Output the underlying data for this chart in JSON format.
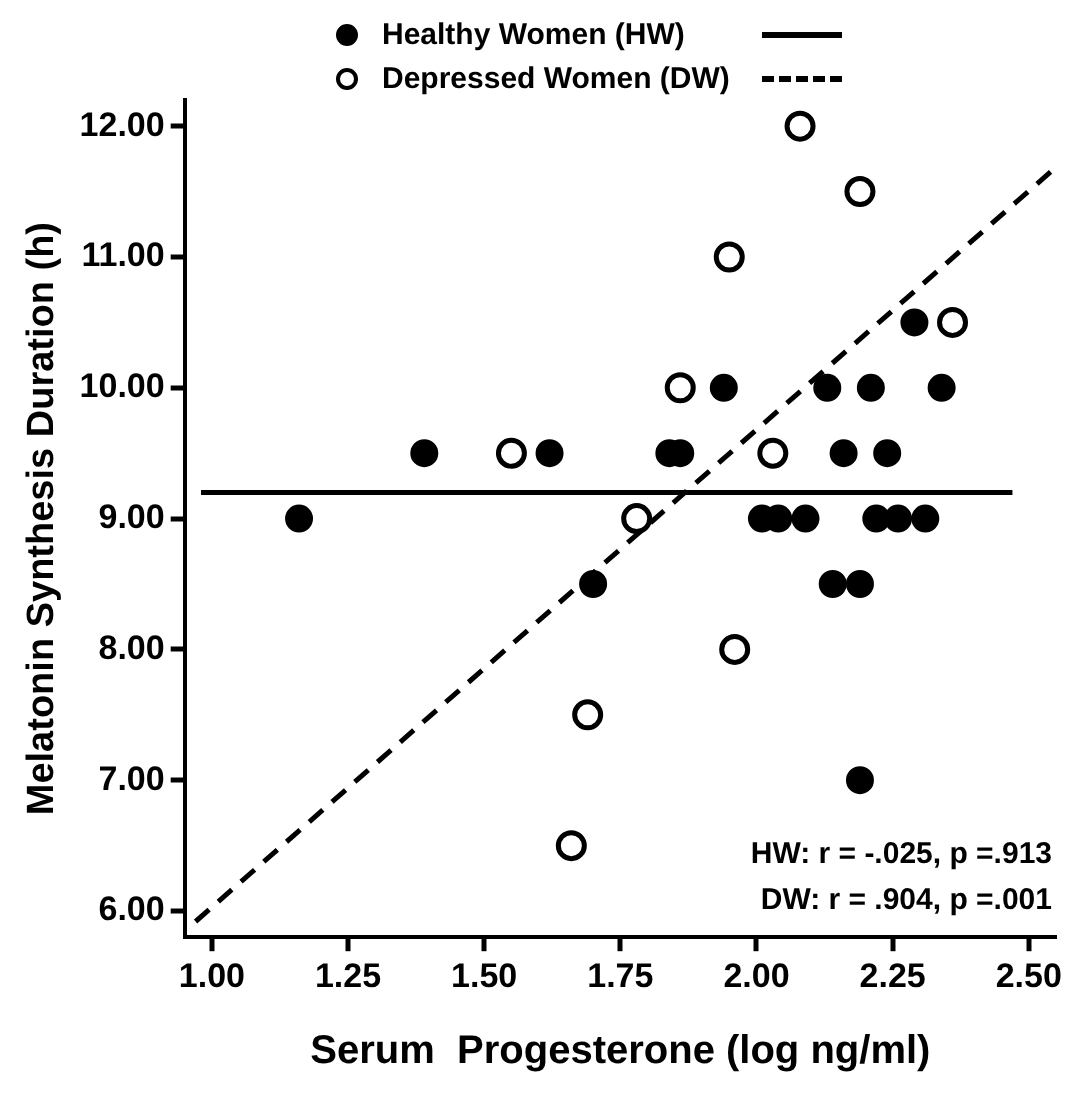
{
  "chart_data": {
    "type": "scatter",
    "xlabel": "Serum  Progesterone (log ng/ml)",
    "ylabel": "Melatonin Synthesis Duration (h)",
    "xlim": [
      0.95,
      2.55
    ],
    "xticks": [
      {
        "value": 1,
        "label": "1.00"
      },
      {
        "value": 1.25,
        "label": "1.25"
      },
      {
        "value": 1.5,
        "label": "1.50"
      },
      {
        "value": 1.75,
        "label": "1.75"
      },
      {
        "value": 2,
        "label": "2.00"
      },
      {
        "value": 2.25,
        "label": "2.25"
      },
      {
        "value": 2.5,
        "label": "2.50"
      }
    ],
    "ylim": [
      5.8,
      12.2
    ],
    "yticks": [
      {
        "value": 6,
        "label": "6.00"
      },
      {
        "value": 7,
        "label": "7.00"
      },
      {
        "value": 8,
        "label": "8.00"
      },
      {
        "value": 9,
        "label": "9.00"
      },
      {
        "value": 10,
        "label": "10.00"
      },
      {
        "value": 11,
        "label": "11.00"
      },
      {
        "value": 12,
        "label": "12.00"
      }
    ],
    "grid": false,
    "legend": "top",
    "annotations": [
      "HW: r = -.025, p =.913",
      "DW: r = .904, p =.001"
    ],
    "series": [
      {
        "name": "Healthy Women (HW)",
        "color": "#000000",
        "marker": "circle",
        "x": [
          1.16,
          1.39,
          1.62,
          1.84,
          1.86,
          1.94,
          2.13,
          2.21,
          2.34,
          2.16,
          2.24,
          2.01,
          2.04,
          2.09,
          2.22,
          2.26,
          2.31,
          1.7,
          2.14,
          2.19,
          2.19,
          2.29
        ],
        "values": [
          9,
          9.5,
          9.5,
          9.5,
          9.5,
          10,
          10,
          10,
          10,
          9.5,
          9.5,
          9,
          9,
          9,
          9,
          9,
          9,
          8.5,
          8.5,
          8.5,
          7,
          10.5
        ]
      },
      {
        "name": "Depressed Women (DW)",
        "color": "#000000",
        "marker": "circle",
        "x": [
          2.08,
          2.19,
          1.95,
          2.36,
          1.86,
          1.55,
          2.03,
          1.78,
          1.96,
          1.69,
          1.66
        ],
        "values": [
          12,
          11.5,
          11,
          10.5,
          10,
          9.5,
          9.5,
          9,
          8,
          7.5,
          6.5
        ]
      },
      {
        "type": "line",
        "color": "#000000",
        "line_style": "solid",
        "marker": "none",
        "x": [
          0.98,
          2.47
        ],
        "values": [
          9.2,
          9.2
        ]
      },
      {
        "type": "line",
        "color": "#000000",
        "line_style": "dashed",
        "marker": "none",
        "x": [
          0.97,
          2.54
        ],
        "values": [
          5.92,
          11.65
        ]
      }
    ]
  }
}
